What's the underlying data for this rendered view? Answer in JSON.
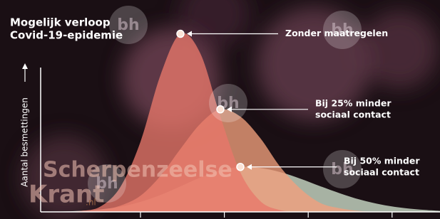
{
  "chart_data": {
    "type": "area",
    "title": [
      "Mogelijk verloop",
      "Covid-19-epidemie"
    ],
    "ylabel": "Aantal besmettingen",
    "x": [
      0,
      5,
      10,
      15,
      20,
      25,
      30,
      35,
      40,
      45,
      50,
      55,
      60,
      65,
      70,
      75,
      80,
      85,
      90,
      95,
      100
    ],
    "xlim": [
      0,
      100
    ],
    "ylim": [
      0,
      100
    ],
    "xticks": [
      25,
      46,
      67,
      88
    ],
    "series": [
      {
        "name": [
          "Bij 50% minder",
          "sociaal contact"
        ],
        "color": "#cfe0cc",
        "values": [
          0.1,
          0.2,
          0.6,
          1.4,
          2.9,
          5.6,
          9.4,
          14.2,
          19.1,
          23.1,
          25,
          24.4,
          22.1,
          18.5,
          14.3,
          10.3,
          6.8,
          4.2,
          2.4,
          1.3,
          0.6
        ]
      },
      {
        "name": [
          "Bij 25% minder",
          "sociaal contact"
        ],
        "color": "#f2a07c",
        "values": [
          0,
          0,
          0.3,
          1,
          3.5,
          9,
          20,
          35,
          49,
          57,
          53,
          41,
          25,
          13,
          5,
          2,
          0.5,
          0,
          0,
          0,
          0
        ]
      },
      {
        "name": [
          "Zonder maatregelen"
        ],
        "color": "#e8776a",
        "values": [
          0,
          0,
          0.5,
          3,
          14,
          39,
          76,
          99,
          88,
          53,
          22,
          6,
          1,
          0,
          0,
          0,
          0,
          0,
          0,
          0,
          0
        ]
      }
    ],
    "logo": "bh",
    "watermark": [
      "Scherpenzeelse",
      "Krant",
      ".nl"
    ]
  }
}
